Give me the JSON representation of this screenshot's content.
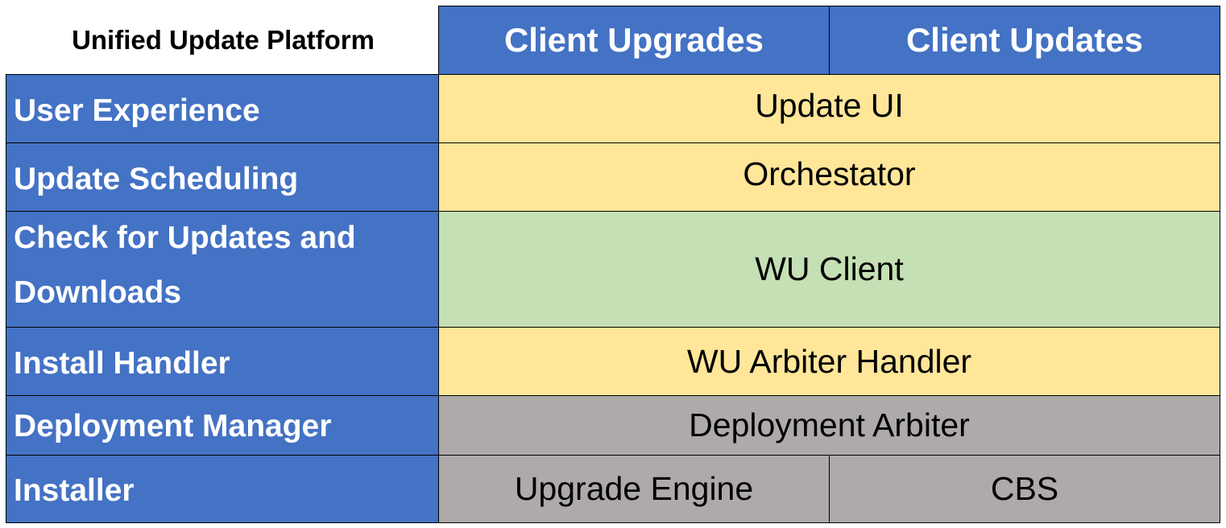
{
  "title": "Unified Update Platform",
  "columns": [
    "Client Upgrades",
    "Client Updates"
  ],
  "rows": [
    {
      "label": "User Experience",
      "cells": [
        "Update UI"
      ]
    },
    {
      "label": "Update Scheduling",
      "cells": [
        "Orchestator"
      ]
    },
    {
      "label": "Check for Updates and Downloads",
      "cells": [
        "WU Client"
      ]
    },
    {
      "label": "Install Handler",
      "cells": [
        "WU Arbiter Handler"
      ]
    },
    {
      "label": "Deployment Manager",
      "cells": [
        "Deployment Arbiter"
      ]
    },
    {
      "label": "Installer",
      "cells": [
        "Upgrade Engine",
        "CBS"
      ]
    }
  ],
  "colors": {
    "header": "#4472C4",
    "yellow": "#FFE699",
    "green": "#C5E0B4",
    "gray": "#AEAAAA"
  }
}
